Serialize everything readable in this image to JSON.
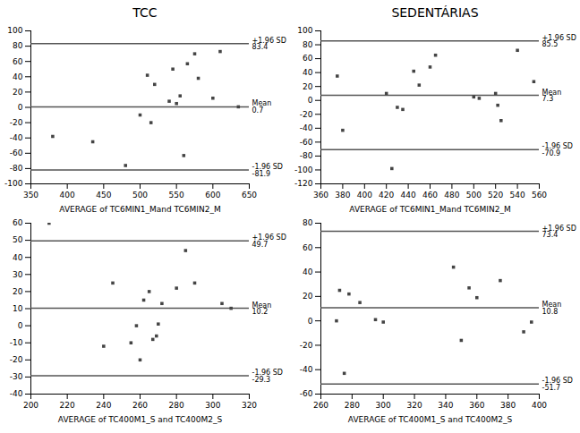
{
  "chart_data": [
    {
      "type": "scatter",
      "title": "TCC",
      "x_label": "AVERAGE of TC6MIN1_Mand TC6MIN2_M",
      "x": [
        380,
        435,
        480,
        500,
        510,
        515,
        520,
        540,
        545,
        550,
        555,
        560,
        565,
        575,
        580,
        600,
        610,
        635
      ],
      "values": [
        -38,
        -45,
        -76,
        -10,
        42,
        -20,
        30,
        8,
        50,
        5,
        15,
        -63,
        57,
        70,
        38,
        12,
        73,
        0.7
      ],
      "color": "#444444",
      "marker": "square",
      "reference_lines": [
        {
          "label": "+1.96 SD",
          "value": 83.4,
          "color": "#555555"
        },
        {
          "label": "Mean",
          "value": 0.7,
          "color": "#555555"
        },
        {
          "label": "-1.96 SD",
          "value": -81.9,
          "color": "#555555"
        }
      ],
      "xlim": [
        350,
        650
      ],
      "ylim": [
        -100,
        100
      ],
      "xticks": [
        350,
        400,
        450,
        500,
        550,
        600,
        650
      ],
      "yticks": [
        -100,
        -80,
        -60,
        -40,
        -20,
        0,
        20,
        40,
        60,
        80,
        100
      ],
      "grid": false
    },
    {
      "type": "scatter",
      "title": "SEDENTÁRIAS",
      "x_label": "AVERAGE of TC6MIN1_Mand TC6MIN2_M",
      "x": [
        375,
        380,
        420,
        425,
        430,
        435,
        445,
        450,
        460,
        465,
        500,
        505,
        520,
        522,
        525,
        540,
        555
      ],
      "values": [
        35,
        -43,
        10,
        -98,
        -10,
        -13,
        42,
        22,
        48,
        65,
        5,
        3,
        10,
        -7,
        -29,
        72,
        27
      ],
      "color": "#444444",
      "marker": "square",
      "reference_lines": [
        {
          "label": "+1.96 SD",
          "value": 85.5,
          "color": "#555555"
        },
        {
          "label": "Mean",
          "value": 7.3,
          "color": "#555555"
        },
        {
          "label": "-1.96 SD",
          "value": -70.9,
          "color": "#555555"
        }
      ],
      "xlim": [
        360,
        560
      ],
      "ylim": [
        -120,
        100
      ],
      "xticks": [
        360,
        380,
        400,
        420,
        440,
        460,
        480,
        500,
        520,
        540,
        560
      ],
      "yticks": [
        -120,
        -100,
        -80,
        -60,
        -40,
        -20,
        0,
        20,
        40,
        60,
        80,
        100
      ],
      "grid": false
    },
    {
      "type": "scatter",
      "x_label": "AVERAGE of TC400M1_S and TC400M2_S",
      "x": [
        210,
        240,
        245,
        255,
        258,
        260,
        262,
        265,
        267,
        269,
        270,
        272,
        280,
        285,
        290,
        305,
        310
      ],
      "values": [
        60,
        -12,
        25,
        -10,
        0,
        -20,
        15,
        20,
        -8,
        -6,
        1,
        13,
        22,
        44,
        25,
        13,
        10.2
      ],
      "color": "#444444",
      "marker": "square",
      "reference_lines": [
        {
          "label": "+1.96 SD",
          "value": 49.7,
          "color": "#555555"
        },
        {
          "label": "Mean",
          "value": 10.2,
          "color": "#555555"
        },
        {
          "label": "-1.96 SD",
          "value": -29.3,
          "color": "#555555"
        }
      ],
      "xlim": [
        200,
        320
      ],
      "ylim": [
        -40,
        60
      ],
      "xticks": [
        200,
        220,
        240,
        260,
        280,
        300,
        320
      ],
      "yticks": [
        -40,
        -30,
        -20,
        -10,
        0,
        10,
        20,
        30,
        40,
        50,
        60
      ],
      "grid": false
    },
    {
      "type": "scatter",
      "x_label": "AVERAGE of TC400M1_S and TC400M2_S",
      "x": [
        270,
        272,
        275,
        278,
        285,
        295,
        300,
        345,
        350,
        355,
        360,
        375,
        390,
        395
      ],
      "values": [
        0,
        25,
        -43,
        22,
        15,
        1,
        -1,
        44,
        -16,
        27,
        19,
        33,
        -9,
        -1
      ],
      "color": "#444444",
      "marker": "square",
      "reference_lines": [
        {
          "label": "+1.96 SD",
          "value": 73.4,
          "color": "#555555"
        },
        {
          "label": "Mean",
          "value": 10.8,
          "color": "#555555"
        },
        {
          "label": "-1.96 SD",
          "value": -51.7,
          "color": "#555555"
        }
      ],
      "xlim": [
        260,
        400
      ],
      "ylim": [
        -60,
        80
      ],
      "xticks": [
        260,
        280,
        300,
        320,
        340,
        360,
        380,
        400
      ],
      "yticks": [
        -60,
        -40,
        -20,
        0,
        20,
        40,
        60,
        80
      ],
      "grid": false
    }
  ]
}
